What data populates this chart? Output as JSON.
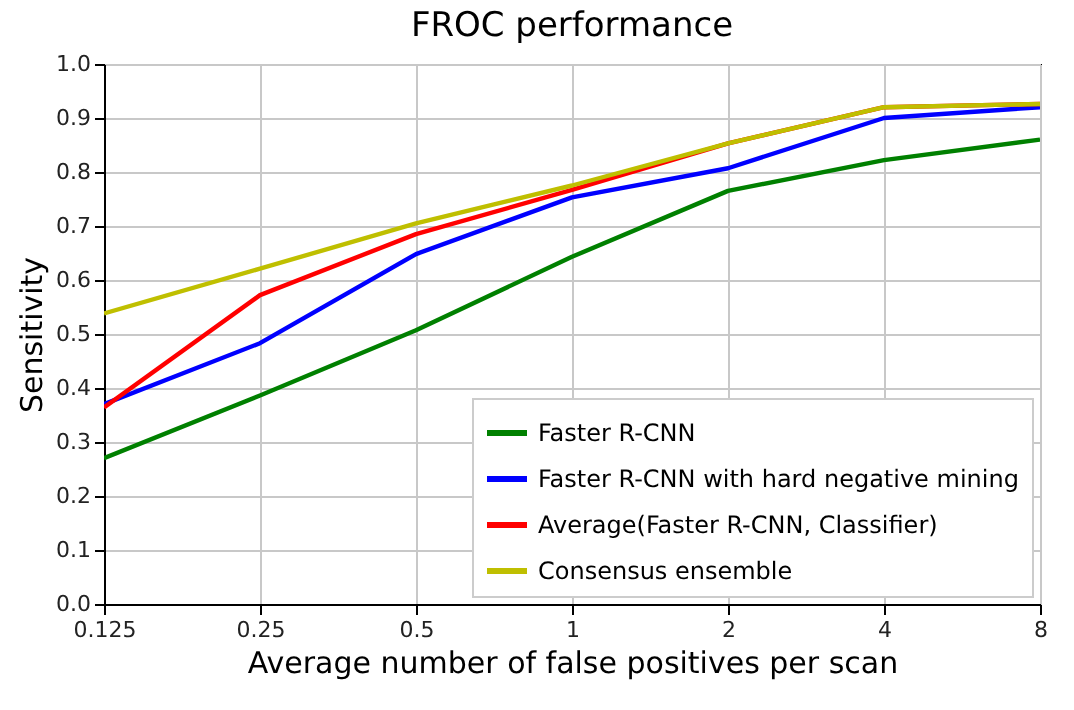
{
  "chart_data": {
    "type": "line",
    "title": "FROC performance",
    "xlabel": "Average number of false positives per scan",
    "ylabel": "Sensitivity",
    "x": [
      0.125,
      0.25,
      0.5,
      1,
      2,
      4,
      8
    ],
    "series": [
      {
        "name": "Faster R-CNN",
        "color": "#008000",
        "values": [
          0.27,
          0.386,
          0.507,
          0.643,
          0.765,
          0.822,
          0.86
        ]
      },
      {
        "name": "Faster R-CNN with hard negative mining",
        "color": "#0000ff",
        "values": [
          0.37,
          0.483,
          0.648,
          0.753,
          0.807,
          0.9,
          0.92
        ]
      },
      {
        "name": "Average(Faster R-CNN, Classifier)",
        "color": "#ff0000",
        "values": [
          0.364,
          0.572,
          0.685,
          0.767,
          0.853,
          0.92,
          0.926
        ]
      },
      {
        "name": "Consensus ensemble",
        "color": "#bfbf00",
        "values": [
          0.538,
          0.621,
          0.705,
          0.775,
          0.853,
          0.92,
          0.926
        ]
      }
    ],
    "log": "x",
    "xlim": [
      0.125,
      8
    ],
    "xticks": [
      0.125,
      0.25,
      0.5,
      1,
      2,
      4,
      8
    ],
    "ylim": [
      0,
      1
    ],
    "yticks": [
      {
        "value": 0,
        "label": "0.0"
      },
      0.1,
      0.2,
      0.3,
      0.4,
      0.5,
      0.6,
      0.7,
      0.8,
      0.9,
      {
        "value": 1,
        "label": "1.0"
      }
    ],
    "grid": true,
    "legend": "bottom right",
    "marker": "none",
    "line_style": "solid"
  }
}
